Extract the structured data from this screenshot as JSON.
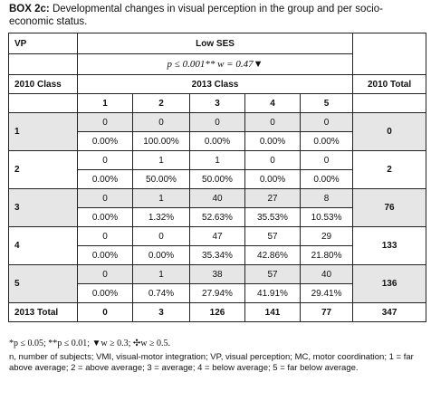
{
  "caption": {
    "box": "BOX 2c:",
    "text": "Developmental changes in visual perception in the group and per socio-economic status."
  },
  "header": {
    "vp": "VP",
    "group": "Low SES",
    "stat": "p ≤ 0.001** w = 0.47▼",
    "row_label": "2010 Class",
    "class_2013": "2013 Class",
    "total_2010": "2010 Total",
    "cols": [
      "1",
      "2",
      "3",
      "4",
      "5"
    ]
  },
  "rows": [
    {
      "label": "1",
      "counts": [
        "0",
        "0",
        "0",
        "0",
        "0"
      ],
      "pcts": [
        "0.00%",
        "100.00%",
        "0.00%",
        "0.00%",
        "0.00%"
      ],
      "total": "0",
      "shade": true
    },
    {
      "label": "2",
      "counts": [
        "0",
        "1",
        "1",
        "0",
        "0"
      ],
      "pcts": [
        "0.00%",
        "50.00%",
        "50.00%",
        "0.00%",
        "0.00%"
      ],
      "total": "2",
      "shade": false
    },
    {
      "label": "3",
      "counts": [
        "0",
        "1",
        "40",
        "27",
        "8"
      ],
      "pcts": [
        "0.00%",
        "1.32%",
        "52.63%",
        "35.53%",
        "10.53%"
      ],
      "total": "76",
      "shade": true
    },
    {
      "label": "4",
      "counts": [
        "0",
        "0",
        "47",
        "57",
        "29"
      ],
      "pcts": [
        "0.00%",
        "0.00%",
        "35.34%",
        "42.86%",
        "21.80%"
      ],
      "total": "133",
      "shade": false
    },
    {
      "label": "5",
      "counts": [
        "0",
        "1",
        "38",
        "57",
        "40"
      ],
      "pcts": [
        "0.00%",
        "0.74%",
        "27.94%",
        "41.91%",
        "29.41%"
      ],
      "total": "136",
      "shade": true
    }
  ],
  "totals": {
    "label": "2013 Total",
    "values": [
      "0",
      "3",
      "126",
      "141",
      "77"
    ],
    "grand": "347"
  },
  "footnotes": {
    "sig": "*p ≤ 0.05; **p ≤ 0.01; ▼w ≥ 0.3; ✣w ≥ 0.5.",
    "legend": "n, number of subjects; VMI, visual-motor integration; VP, visual perception; MC, motor coordination; 1 = far above average; 2 = above average; 3 = average; 4 = below average; 5 = far below average."
  }
}
